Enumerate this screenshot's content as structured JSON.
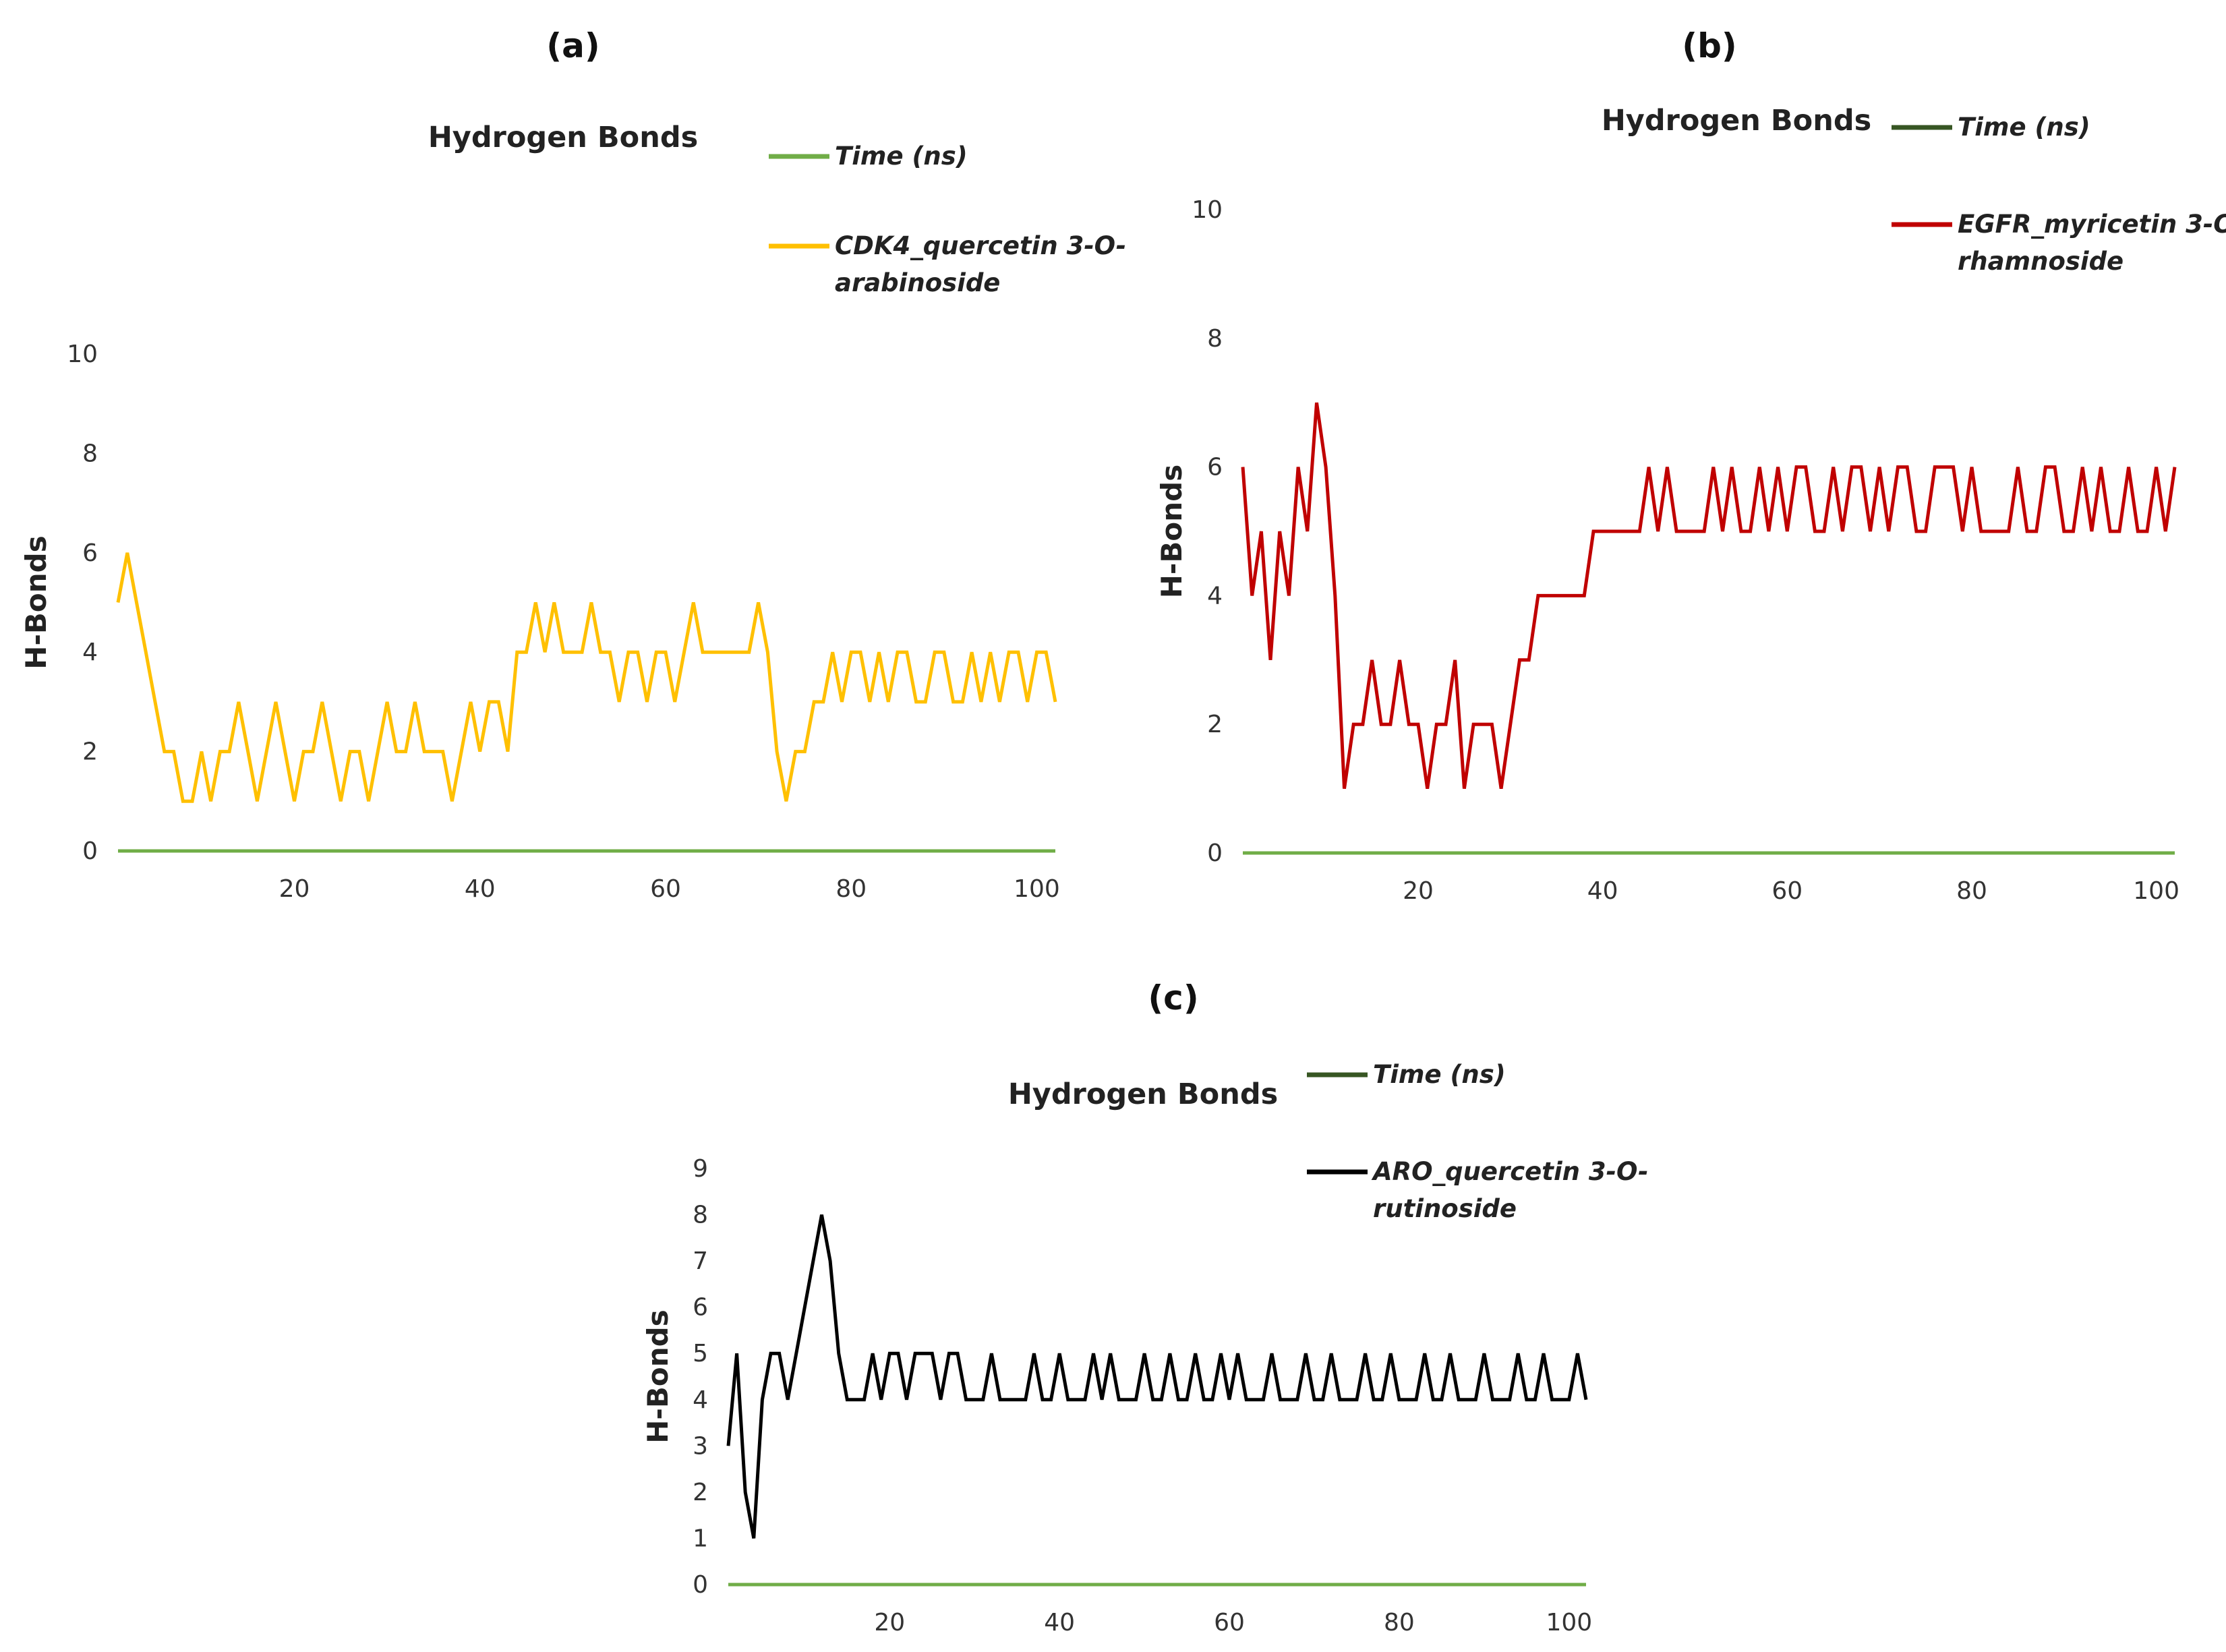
{
  "figure": {
    "panels": [
      "(a)",
      "(b)",
      "(c)"
    ]
  },
  "chart_data": [
    {
      "panel": "(a)",
      "type": "line",
      "title": "Hydrogen Bonds",
      "xlabel": "",
      "ylabel": "H-Bonds",
      "xlim": [
        1,
        102
      ],
      "ylim": [
        0,
        10
      ],
      "xticks": [
        "20",
        "40",
        "60",
        "80",
        "100"
      ],
      "yticks": [
        "0",
        "2",
        "4",
        "6",
        "8",
        "10"
      ],
      "grid": false,
      "legend_position": "top-right",
      "series": [
        {
          "name": "Time (ns)",
          "color": "#70AD47",
          "x": [
            1,
            102
          ],
          "values": [
            0,
            0
          ]
        },
        {
          "name": "CDK4_quercetin 3-O-arabinoside",
          "color": "#FFC000",
          "x": [
            1,
            2,
            3,
            4,
            5,
            6,
            7,
            8,
            9,
            10,
            11,
            12,
            13,
            14,
            15,
            16,
            17,
            18,
            19,
            20,
            21,
            22,
            23,
            24,
            25,
            26,
            27,
            28,
            29,
            30,
            31,
            32,
            33,
            34,
            35,
            36,
            37,
            38,
            39,
            40,
            41,
            42,
            43,
            44,
            45,
            46,
            47,
            48,
            49,
            50,
            51,
            52,
            53,
            54,
            55,
            56,
            57,
            58,
            59,
            60,
            61,
            62,
            63,
            64,
            65,
            66,
            67,
            68,
            69,
            70,
            71,
            72,
            73,
            74,
            75,
            76,
            77,
            78,
            79,
            80,
            81,
            82,
            83,
            84,
            85,
            86,
            87,
            88,
            89,
            90,
            91,
            92,
            93,
            94,
            95,
            96,
            97,
            98,
            99,
            100,
            101,
            102
          ],
          "values": [
            5,
            6,
            5,
            4,
            3,
            2,
            2,
            1,
            1,
            2,
            1,
            2,
            2,
            3,
            2,
            1,
            2,
            3,
            2,
            1,
            2,
            2,
            3,
            2,
            1,
            2,
            2,
            1,
            2,
            3,
            2,
            2,
            3,
            2,
            2,
            2,
            1,
            2,
            3,
            2,
            3,
            3,
            2,
            4,
            4,
            5,
            4,
            5,
            4,
            4,
            4,
            5,
            4,
            4,
            3,
            4,
            4,
            3,
            4,
            4,
            3,
            4,
            5,
            4,
            4,
            4,
            4,
            4,
            4,
            5,
            4,
            2,
            1,
            2,
            2,
            3,
            3,
            4,
            3,
            4,
            4,
            3,
            4,
            3,
            4,
            4,
            3,
            3,
            4,
            4,
            3,
            3,
            4,
            3,
            4,
            3,
            4,
            4,
            3,
            4,
            4,
            3
          ]
        }
      ]
    },
    {
      "panel": "(b)",
      "type": "line",
      "title": "Hydrogen Bonds",
      "xlabel": "",
      "ylabel": "H-Bonds",
      "xlim": [
        1,
        102
      ],
      "ylim": [
        0,
        10
      ],
      "xticks": [
        "20",
        "40",
        "60",
        "80",
        "100"
      ],
      "yticks": [
        "0",
        "2",
        "4",
        "6",
        "8",
        "10"
      ],
      "grid": false,
      "legend_position": "top-right",
      "series": [
        {
          "name": "Time (ns)",
          "color": "#70AD47",
          "legend_color": "#375623",
          "x": [
            1,
            102
          ],
          "values": [
            0,
            0
          ]
        },
        {
          "name": "EGFR_myricetin 3-O-rhamnoside",
          "color": "#C00000",
          "x": [
            1,
            2,
            3,
            4,
            5,
            6,
            7,
            8,
            9,
            10,
            11,
            12,
            13,
            14,
            15,
            16,
            17,
            18,
            19,
            20,
            21,
            22,
            23,
            24,
            25,
            26,
            27,
            28,
            29,
            30,
            31,
            32,
            33,
            34,
            35,
            36,
            37,
            38,
            39,
            40,
            41,
            42,
            43,
            44,
            45,
            46,
            47,
            48,
            49,
            50,
            51,
            52,
            53,
            54,
            55,
            56,
            57,
            58,
            59,
            60,
            61,
            62,
            63,
            64,
            65,
            66,
            67,
            68,
            69,
            70,
            71,
            72,
            73,
            74,
            75,
            76,
            77,
            78,
            79,
            80,
            81,
            82,
            83,
            84,
            85,
            86,
            87,
            88,
            89,
            90,
            91,
            92,
            93,
            94,
            95,
            96,
            97,
            98,
            99,
            100,
            101,
            102
          ],
          "values": [
            6,
            4,
            5,
            3,
            5,
            4,
            6,
            5,
            7,
            6,
            4,
            1,
            2,
            2,
            3,
            2,
            2,
            3,
            2,
            2,
            1,
            2,
            2,
            3,
            1,
            2,
            2,
            2,
            1,
            2,
            3,
            3,
            4,
            4,
            4,
            4,
            4,
            4,
            5,
            5,
            5,
            5,
            5,
            5,
            6,
            5,
            6,
            5,
            5,
            5,
            5,
            6,
            5,
            6,
            5,
            5,
            6,
            5,
            6,
            5,
            6,
            6,
            5,
            5,
            6,
            5,
            6,
            6,
            5,
            6,
            5,
            6,
            6,
            5,
            5,
            6,
            6,
            6,
            5,
            6,
            5,
            5,
            5,
            5,
            6,
            5,
            5,
            6,
            6,
            5,
            5,
            6,
            5,
            6,
            5,
            5,
            6,
            5,
            5,
            6,
            5,
            6
          ]
        }
      ]
    },
    {
      "panel": "(c)",
      "type": "line",
      "title": "Hydrogen Bonds",
      "xlabel": "",
      "ylabel": "H-Bonds",
      "xlim": [
        1,
        102
      ],
      "ylim": [
        0,
        9
      ],
      "xticks": [
        "20",
        "40",
        "60",
        "80",
        "100"
      ],
      "yticks": [
        "0",
        "1",
        "2",
        "3",
        "4",
        "5",
        "6",
        "7",
        "8",
        "9"
      ],
      "grid": false,
      "legend_position": "top-right",
      "series": [
        {
          "name": "Time (ns)",
          "color": "#70AD47",
          "legend_color": "#375623",
          "x": [
            1,
            102
          ],
          "values": [
            0,
            0
          ]
        },
        {
          "name": "ARO_quercetin 3-O-rutinoside",
          "color": "#000000",
          "x": [
            1,
            2,
            3,
            4,
            5,
            6,
            7,
            8,
            9,
            10,
            11,
            12,
            13,
            14,
            15,
            16,
            17,
            18,
            19,
            20,
            21,
            22,
            23,
            24,
            25,
            26,
            27,
            28,
            29,
            30,
            31,
            32,
            33,
            34,
            35,
            36,
            37,
            38,
            39,
            40,
            41,
            42,
            43,
            44,
            45,
            46,
            47,
            48,
            49,
            50,
            51,
            52,
            53,
            54,
            55,
            56,
            57,
            58,
            59,
            60,
            61,
            62,
            63,
            64,
            65,
            66,
            67,
            68,
            69,
            70,
            71,
            72,
            73,
            74,
            75,
            76,
            77,
            78,
            79,
            80,
            81,
            82,
            83,
            84,
            85,
            86,
            87,
            88,
            89,
            90,
            91,
            92,
            93,
            94,
            95,
            96,
            97,
            98,
            99,
            100,
            101,
            102
          ],
          "values": [
            3,
            5,
            2,
            1,
            4,
            5,
            5,
            4,
            5,
            6,
            7,
            8,
            7,
            5,
            4,
            4,
            4,
            5,
            4,
            5,
            5,
            4,
            5,
            5,
            5,
            4,
            5,
            5,
            4,
            4,
            4,
            5,
            4,
            4,
            4,
            4,
            5,
            4,
            4,
            5,
            4,
            4,
            4,
            5,
            4,
            5,
            4,
            4,
            4,
            5,
            4,
            4,
            5,
            4,
            4,
            5,
            4,
            4,
            5,
            4,
            5,
            4,
            4,
            4,
            5,
            4,
            4,
            4,
            5,
            4,
            4,
            5,
            4,
            4,
            4,
            5,
            4,
            4,
            5,
            4,
            4,
            4,
            5,
            4,
            4,
            5,
            4,
            4,
            4,
            5,
            4,
            4,
            4,
            5,
            4,
            4,
            5,
            4,
            4,
            4,
            5,
            4
          ]
        }
      ]
    }
  ]
}
